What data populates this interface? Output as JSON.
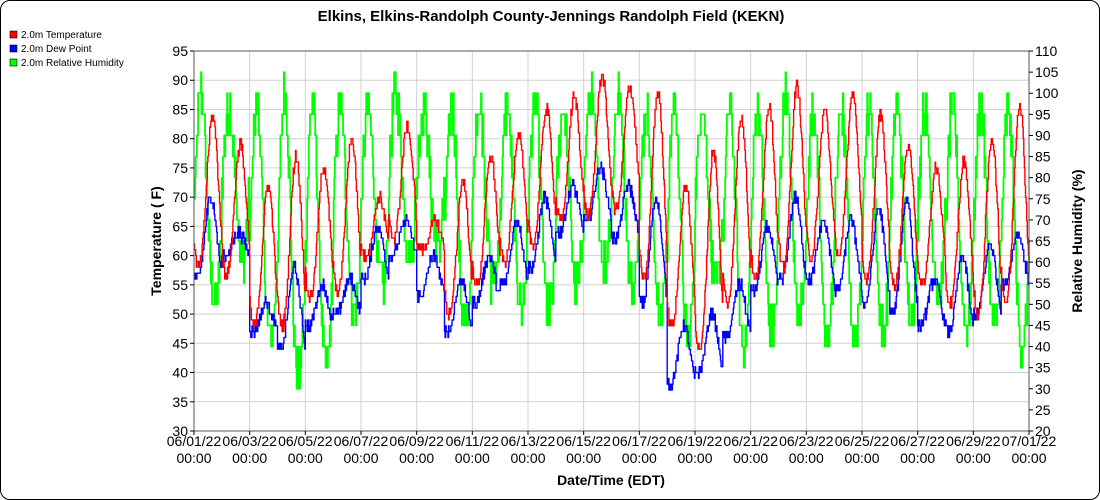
{
  "chart_data": {
    "type": "line",
    "title": "Elkins, Elkins-Randolph County-Jennings Randolph Field (KEKN)",
    "xlabel": "Date/Time (EDT)",
    "ylabel_left": "Temperature ( F)",
    "ylabel_right": "Relative Humidity (%)",
    "ylim_left": [
      30,
      95
    ],
    "ylim_right": [
      20,
      110
    ],
    "yticks_left": [
      "30",
      "35",
      "40",
      "45",
      "50",
      "55",
      "60",
      "65",
      "70",
      "75",
      "80",
      "85",
      "90",
      "95"
    ],
    "yticks_right": [
      "20",
      "25",
      "30",
      "35",
      "40",
      "45",
      "50",
      "55",
      "60",
      "65",
      "70",
      "75",
      "80",
      "85",
      "90",
      "95",
      "100",
      "105",
      "110"
    ],
    "xticks": [
      [
        "06/01/22",
        "00:00"
      ],
      [
        "06/03/22",
        "00:00"
      ],
      [
        "06/05/22",
        "00:00"
      ],
      [
        "06/07/22",
        "00:00"
      ],
      [
        "06/09/22",
        "00:00"
      ],
      [
        "06/11/22",
        "00:00"
      ],
      [
        "06/13/22",
        "00:00"
      ],
      [
        "06/15/22",
        "00:00"
      ],
      [
        "06/17/22",
        "00:00"
      ],
      [
        "06/19/22",
        "00:00"
      ],
      [
        "06/21/22",
        "00:00"
      ],
      [
        "06/23/22",
        "00:00"
      ],
      [
        "06/25/22",
        "00:00"
      ],
      [
        "06/27/22",
        "00:00"
      ],
      [
        "06/29/22",
        "00:00"
      ],
      [
        "07/01/22",
        "00:00"
      ]
    ],
    "x_range": [
      "06/01/22 00:00",
      "07/01/22 00:00"
    ],
    "grid": true,
    "legend_position": "top-left",
    "series": [
      {
        "name": "2.0m Temperature",
        "color": "#ff0000",
        "axis": "left",
        "daily_min": [
          58,
          57,
          48,
          48,
          53,
          54,
          60,
          63,
          61,
          50,
          55,
          59,
          62,
          66,
          67,
          68,
          56,
          48,
          44,
          52,
          56,
          58,
          60,
          60,
          56,
          55,
          55,
          52,
          50,
          52
        ],
        "daily_max": [
          84,
          79,
          72,
          77,
          75,
          80,
          70,
          82,
          66,
          73,
          77,
          81,
          85,
          87,
          91,
          89,
          88,
          72,
          78,
          84,
          86,
          89,
          85,
          88,
          84,
          79,
          75,
          76,
          80,
          86
        ]
      },
      {
        "name": "2.0m Dew Point",
        "color": "#0000ff",
        "axis": "left",
        "daily_min": [
          56,
          60,
          47,
          44,
          48,
          50,
          56,
          60,
          53,
          47,
          52,
          55,
          58,
          64,
          66,
          63,
          52,
          38,
          40,
          46,
          54,
          56,
          56,
          54,
          52,
          50,
          48,
          47,
          50,
          55
        ],
        "daily_max": [
          70,
          64,
          52,
          58,
          55,
          56,
          65,
          66,
          60,
          56,
          60,
          66,
          70,
          72,
          75,
          72,
          70,
          48,
          50,
          55,
          65,
          70,
          66,
          66,
          68,
          70,
          56,
          60,
          62,
          64
        ]
      },
      {
        "name": "2.0m Relative Humidity",
        "color": "#00ff00",
        "axis": "right",
        "daily_min": [
          50,
          62,
          42,
          33,
          36,
          48,
          55,
          62,
          64,
          45,
          55,
          50,
          48,
          55,
          60,
          55,
          48,
          42,
          55,
          40,
          43,
          48,
          42,
          42,
          44,
          48,
          52,
          45,
          45,
          40
        ],
        "daily_max": [
          100,
          97,
          97,
          100,
          97,
          97,
          97,
          100,
          97,
          97,
          97,
          97,
          97,
          97,
          100,
          100,
          97,
          97,
          97,
          97,
          97,
          100,
          97,
          97,
          97,
          97,
          97,
          97,
          97,
          97
        ]
      }
    ]
  }
}
